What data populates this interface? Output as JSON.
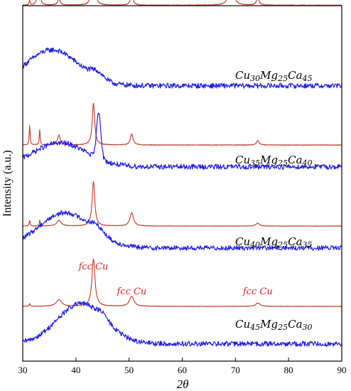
{
  "chart_data": {
    "type": "line",
    "xlabel": "2θ",
    "ylabel": "Intensity (a.u.)",
    "xlim": [
      30,
      90
    ],
    "x_ticks": [
      "30",
      "40",
      "50",
      "60",
      "70",
      "80",
      "90"
    ],
    "colors": {
      "crystalline": "#c0392b",
      "amorphous": "#1f1fe0",
      "axis": "#000000",
      "annotation": "#c62828"
    },
    "series": [
      {
        "name": "Cu30Mg25Ca45 crystalline",
        "color": "#c0392b",
        "kind": "crystalline",
        "baseline": 0.96,
        "noise": 0.02,
        "peaks": [
          {
            "x": 33.0,
            "h": 1.0,
            "w": 0.14
          },
          {
            "x": 31.3,
            "h": 0.08,
            "w": 0.1
          },
          {
            "x": 36.8,
            "h": 0.1,
            "w": 0.3
          },
          {
            "x": 43.3,
            "h": 0.74,
            "w": 0.28
          },
          {
            "x": 50.5,
            "h": 0.18,
            "w": 0.3
          },
          {
            "x": 69.2,
            "h": 1.55,
            "w": 0.22
          },
          {
            "x": 74.2,
            "h": 0.12,
            "w": 0.3
          }
        ]
      },
      {
        "name": "Cu30Mg25Ca45 amorphous",
        "color": "#1f1fe0",
        "kind": "amorphous",
        "baseline": 0.02,
        "noise": 0.06,
        "label": "Cu30Mg25Ca45",
        "label_parts": [
          "Cu",
          "30",
          "Mg",
          "25",
          "Ca",
          "45"
        ],
        "humps": [
          {
            "x": 35.5,
            "h": 0.42,
            "w": 5.0
          },
          {
            "x": 44.0,
            "h": 0.08,
            "w": 1.2
          }
        ]
      },
      {
        "name": "Cu35Mg25Ca40 crystalline",
        "color": "#c0392b",
        "kind": "crystalline",
        "baseline": 0.0,
        "noise": 0.02,
        "peaks": [
          {
            "x": 31.3,
            "h": 0.35,
            "w": 0.1
          },
          {
            "x": 33.2,
            "h": 0.28,
            "w": 0.1
          },
          {
            "x": 36.8,
            "h": 0.18,
            "w": 0.3
          },
          {
            "x": 43.3,
            "h": 0.75,
            "w": 0.28
          },
          {
            "x": 50.5,
            "h": 0.2,
            "w": 0.3
          },
          {
            "x": 74.2,
            "h": 0.08,
            "w": 0.3
          }
        ]
      },
      {
        "name": "Cu35Mg25Ca40 amorphous",
        "color": "#1f1fe0",
        "kind": "amorphous",
        "baseline": 0.02,
        "noise": 0.06,
        "label": "Cu35Mg25Ca40",
        "label_parts": [
          "Cu",
          "35",
          "Mg",
          "25",
          "Ca",
          "40"
        ],
        "humps": [
          {
            "x": 37.0,
            "h": 0.28,
            "w": 5.0
          },
          {
            "x": 44.3,
            "h": 0.55,
            "w": 0.4
          }
        ]
      },
      {
        "name": "Cu40Mg25Ca35 crystalline",
        "color": "#c0392b",
        "kind": "crystalline",
        "baseline": 0.0,
        "noise": 0.015,
        "peaks": [
          {
            "x": 31.3,
            "h": 0.1,
            "w": 0.1
          },
          {
            "x": 33.2,
            "h": 0.1,
            "w": 0.1
          },
          {
            "x": 36.8,
            "h": 0.1,
            "w": 0.5
          },
          {
            "x": 43.3,
            "h": 0.8,
            "w": 0.3
          },
          {
            "x": 50.5,
            "h": 0.24,
            "w": 0.4
          },
          {
            "x": 74.2,
            "h": 0.05,
            "w": 0.4
          }
        ]
      },
      {
        "name": "Cu40Mg25Ca35 amorphous",
        "color": "#1f1fe0",
        "kind": "amorphous",
        "baseline": 0.02,
        "noise": 0.06,
        "label": "Cu40Mg25Ca35",
        "label_parts": [
          "Cu",
          "40",
          "Mg",
          "25",
          "Ca",
          "35"
        ],
        "humps": [
          {
            "x": 38.0,
            "h": 0.45,
            "w": 5.0
          },
          {
            "x": 44.0,
            "h": 0.08,
            "w": 1.2
          }
        ]
      },
      {
        "name": "Cu45Mg25Ca30 crystalline",
        "color": "#c0392b",
        "kind": "crystalline",
        "baseline": 0.0,
        "noise": 0.015,
        "peaks": [
          {
            "x": 31.3,
            "h": 0.05,
            "w": 0.1
          },
          {
            "x": 36.8,
            "h": 0.12,
            "w": 0.6
          },
          {
            "x": 43.3,
            "h": 0.85,
            "w": 0.35
          },
          {
            "x": 50.5,
            "h": 0.18,
            "w": 0.5
          },
          {
            "x": 74.2,
            "h": 0.06,
            "w": 0.5
          }
        ]
      },
      {
        "name": "Cu45Mg25Ca30 amorphous",
        "color": "#1f1fe0",
        "kind": "amorphous",
        "baseline": 0.02,
        "noise": 0.06,
        "label": "Cu45Mg25Ca30",
        "label_parts": [
          "Cu",
          "45",
          "Mg",
          "25",
          "Ca",
          "30"
        ],
        "humps": [
          {
            "x": 41.0,
            "h": 0.48,
            "w": 4.5
          },
          {
            "x": 45.0,
            "h": 0.05,
            "w": 1.0
          }
        ]
      }
    ],
    "annotations": [
      {
        "text": "fcc Cu",
        "x": 43.3
      },
      {
        "text": "fcc Cu",
        "x": 50.5
      },
      {
        "text": "fcc Cu",
        "x": 74.2
      }
    ]
  }
}
